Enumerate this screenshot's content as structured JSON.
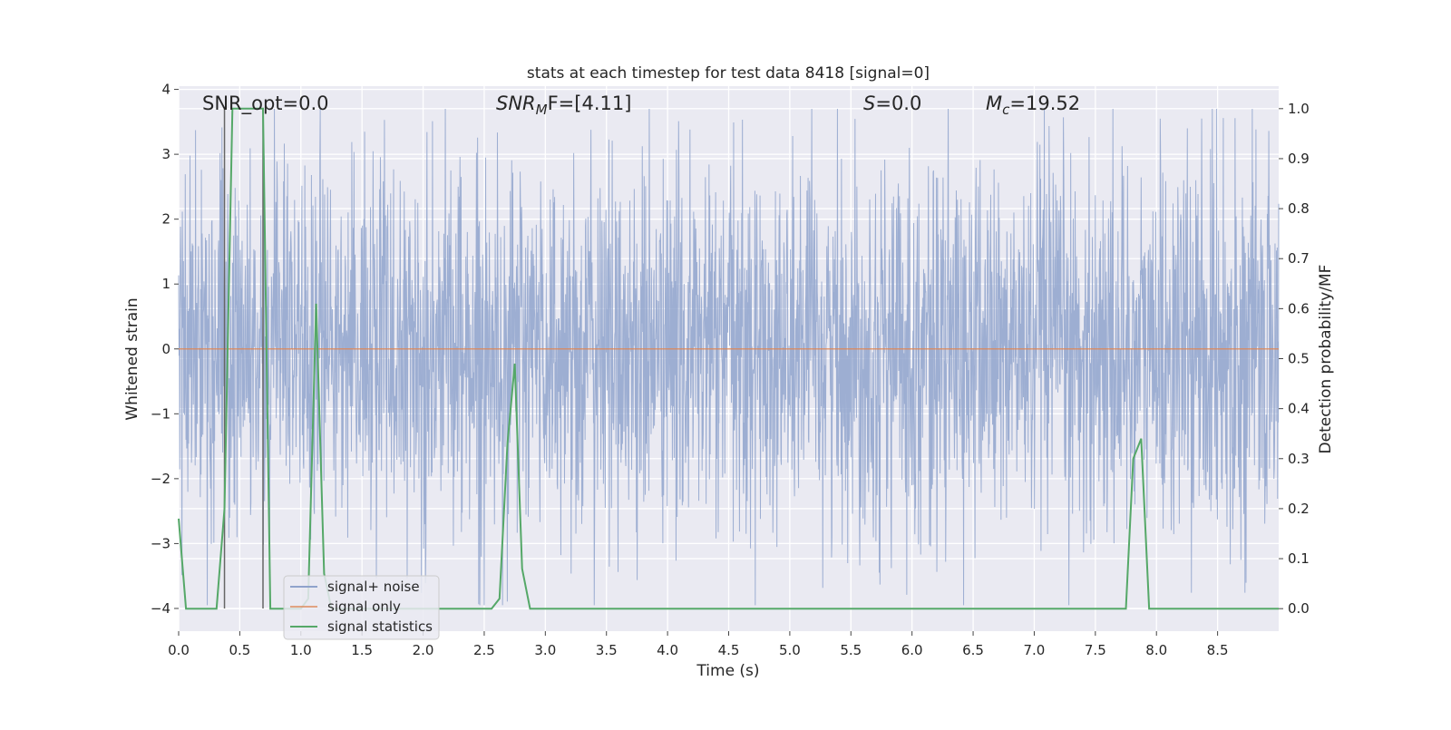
{
  "chart_data": {
    "type": "line",
    "title": "stats at each timestep for test data 8418 [signal=0]",
    "xlabel": "Time (s)",
    "ylabel": "Whitened strain",
    "y2label": "Detection probability/MF",
    "xlim": [
      0.0,
      9.0
    ],
    "ylim": [
      -4.35,
      4.05
    ],
    "y2lim": [
      -0.045,
      1.045
    ],
    "x_ticks": [
      "0.0",
      "0.5",
      "1.0",
      "1.5",
      "2.0",
      "2.5",
      "3.0",
      "3.5",
      "4.0",
      "4.5",
      "5.0",
      "5.5",
      "6.0",
      "6.5",
      "7.0",
      "7.5",
      "8.0",
      "8.5"
    ],
    "y_ticks": [
      "4",
      "3",
      "2",
      "1",
      "0",
      "−1",
      "−2",
      "−3",
      "−4"
    ],
    "y2_ticks": [
      "1.0",
      "0.9",
      "0.8",
      "0.7",
      "0.6",
      "0.5",
      "0.4",
      "0.3",
      "0.2",
      "0.1",
      "0.0"
    ],
    "grid": true,
    "legend_position": "lower-left",
    "legend": [
      "signal+ noise",
      "signal only",
      "signal statistics"
    ],
    "annotations": {
      "snr_opt": "SNR_opt=0.0",
      "snr_mf_base": "SNR",
      "snr_mf_sub": "M",
      "snr_mf_rest": "F=[4.11]",
      "s_base": "S",
      "s_rest": "=0.0",
      "mc_base": "M",
      "mc_sub": "c",
      "mc_rest": "=19.52"
    },
    "vertical_lines_x": [
      0.375,
      0.69
    ],
    "series": [
      {
        "name": "signal+ noise",
        "color": "#8fa3cc",
        "kind": "noise",
        "x_range": [
          0.0,
          9.0
        ],
        "typical_range": [
          -1.7,
          1.7
        ],
        "extremes": [
          -3.95,
          3.7
        ]
      },
      {
        "name": "signal only",
        "color": "#dd8452",
        "x": [
          0.0,
          9.0
        ],
        "y": [
          0.0,
          0.0
        ]
      },
      {
        "name": "signal statistics",
        "color": "#55a868",
        "axis": "right",
        "x": [
          0.0,
          0.06,
          0.125,
          0.19,
          0.31,
          0.375,
          0.44,
          0.5,
          0.56,
          0.625,
          0.69,
          0.75,
          0.81,
          0.875,
          0.94,
          1.0,
          1.06,
          1.125,
          1.19,
          1.25,
          1.31,
          2.56,
          2.625,
          2.69,
          2.75,
          2.81,
          2.875,
          2.94,
          7.75,
          7.81,
          7.875,
          7.94,
          8.0,
          9.0
        ],
        "y": [
          0.18,
          0.0,
          0.0,
          0.0,
          0.0,
          0.2,
          1.0,
          1.0,
          1.0,
          1.0,
          1.0,
          0.0,
          0.0,
          0.0,
          0.0,
          0.0,
          0.02,
          0.61,
          0.07,
          0.0,
          0.0,
          0.0,
          0.02,
          0.33,
          0.49,
          0.08,
          0.0,
          0.0,
          0.0,
          0.3,
          0.34,
          0.0,
          0.0,
          0.0
        ]
      }
    ]
  }
}
